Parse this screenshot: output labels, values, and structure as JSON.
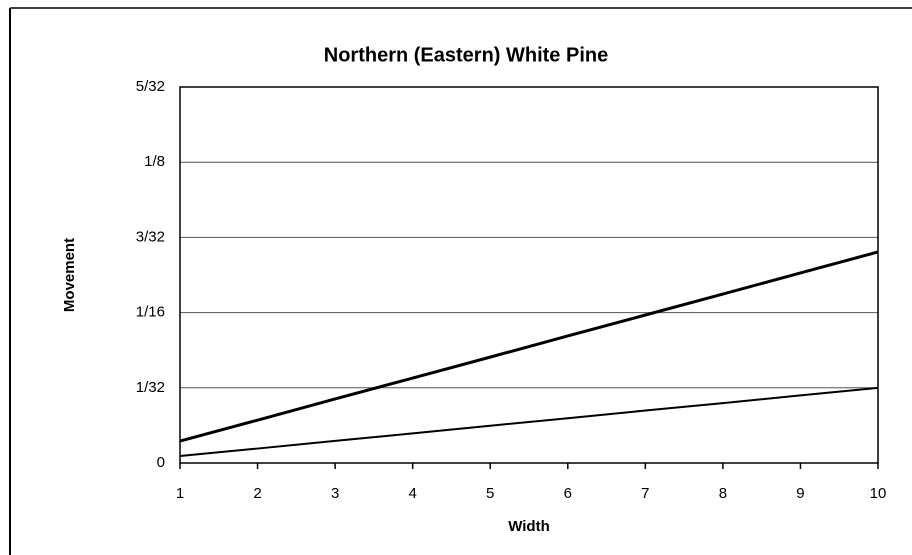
{
  "chart_data": {
    "type": "line",
    "title": "Northern (Eastern) White Pine",
    "xlabel": "Width",
    "ylabel": "Movement",
    "x": [
      1,
      2,
      3,
      4,
      5,
      6,
      7,
      8,
      9,
      10
    ],
    "series": [
      {
        "color": "#000000",
        "values": [
          0.0091,
          0.0178,
          0.0266,
          0.0353,
          0.044,
          0.0528,
          0.0615,
          0.0702,
          0.079,
          0.0877
        ]
      },
      {
        "color": "#000000",
        "values": [
          0.0029,
          0.006,
          0.0092,
          0.0123,
          0.0155,
          0.0186,
          0.0218,
          0.0249,
          0.0281,
          0.0312
        ]
      }
    ],
    "xlim": [
      1,
      10
    ],
    "xticks": [
      1,
      2,
      3,
      4,
      5,
      6,
      7,
      8,
      9,
      10
    ],
    "ylim": [
      0,
      0.15625
    ],
    "yticks": [
      0,
      {
        "value": 0.03125,
        "label": "1/32"
      },
      {
        "value": 0.0625,
        "label": "1/16"
      },
      {
        "value": 0.09375,
        "label": "3/32"
      },
      {
        "value": 0.125,
        "label": "1/8"
      },
      {
        "value": 0.15625,
        "label": "5/32"
      }
    ],
    "grid": true
  }
}
